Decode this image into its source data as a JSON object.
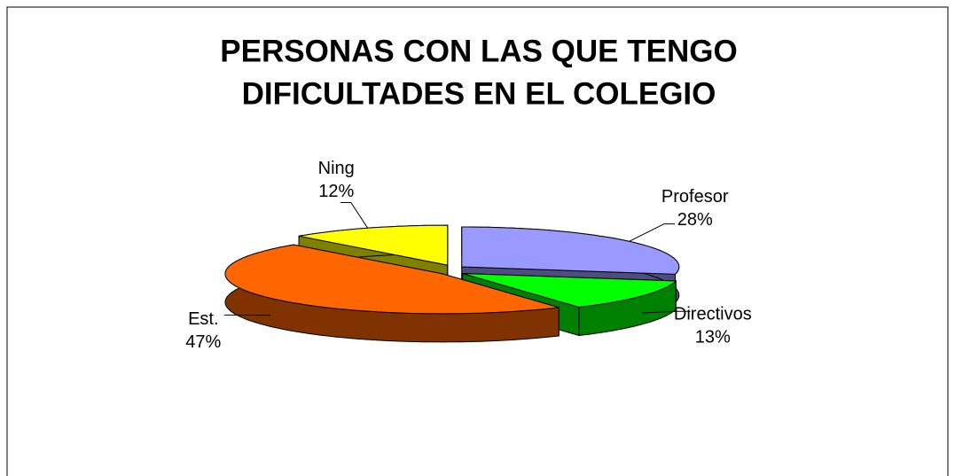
{
  "chart_data": {
    "type": "pie3d",
    "title": [
      "PERSONAS CON LAS QUE TENGO",
      "DIFICULTADES EN EL COLEGIO"
    ],
    "categories": [
      "Profesor",
      "Directivos",
      "Est.",
      "Ning"
    ],
    "values": [
      28,
      13,
      47,
      12
    ],
    "value_labels": [
      "28%",
      "13%",
      "47%",
      "12%"
    ],
    "colors": [
      "#9999ff",
      "#00ff00",
      "#ff6600",
      "#ffff00"
    ],
    "side_colors": [
      "#4d4d80",
      "#008000",
      "#803300",
      "#808000"
    ]
  }
}
